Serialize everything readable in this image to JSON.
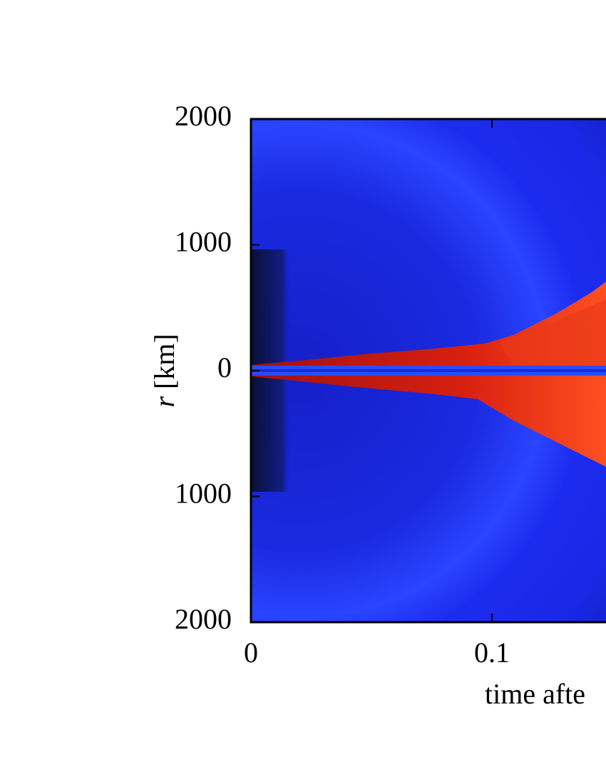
{
  "chart_data": {
    "type": "image",
    "y_label": {
      "symbol": "r",
      "unit": "[km]"
    },
    "x_label": "time afte",
    "xlim": [
      0,
      0.147
    ],
    "xticks": [
      0,
      0.1
    ],
    "ylim": [
      -2000,
      2000
    ],
    "yticks": [
      {
        "value": -2000,
        "label": "2000"
      },
      {
        "value": -1000,
        "label": "1000"
      },
      0,
      1000,
      2000
    ]
  }
}
